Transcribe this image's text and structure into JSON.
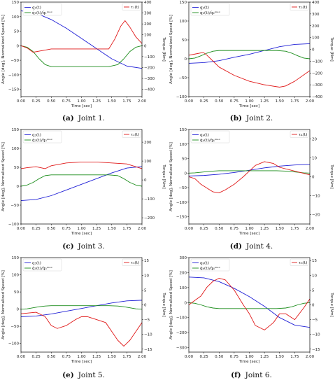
{
  "chart_data": [
    {
      "type": "line",
      "caption_letter": "(a)",
      "caption_text": "Joint 1.",
      "xlabel": "Time [sec]",
      "ylabel_left": "Angle [deg], Normalized Speed [%]",
      "ylabel_right": "Torque [Nm]",
      "xlim": [
        0,
        2
      ],
      "xticks": [
        "0.00",
        "0.25",
        "0.50",
        "0.75",
        "1.00",
        "1.25",
        "1.50",
        "1.75",
        "2.00"
      ],
      "ylim_left": [
        -175,
        150
      ],
      "yticks_left": [
        "150",
        "100",
        "50",
        "0",
        "−50",
        "−100",
        "−150"
      ],
      "ylim_right": [
        -467,
        400
      ],
      "yticks_right": [
        "400",
        "300",
        "200",
        "100",
        "0",
        "−100",
        "−200",
        "−300",
        "−400"
      ],
      "legend_left": [
        "q₁(t)",
        "q̇₁(t)/q̇₁ᵐᵃˣ"
      ],
      "legend_right": [
        "τ₁(t)"
      ],
      "series": [
        {
          "name": "q₁(t)",
          "axis": "left",
          "color": "#1f1fd6",
          "x": [
            0,
            0.25,
            0.5,
            0.75,
            1.0,
            1.25,
            1.5,
            1.75,
            2.0
          ],
          "values": [
            120,
            112,
            90,
            60,
            25,
            -10,
            -45,
            -70,
            -78
          ]
        },
        {
          "name": "q̇₁(t)/q̇₁ᵐᵃˣ",
          "axis": "left",
          "color": "#1a8c1a",
          "x": [
            0,
            0.1,
            0.2,
            0.3,
            0.4,
            0.5,
            1.0,
            1.45,
            1.6,
            1.7,
            1.8,
            1.9,
            2.0
          ],
          "values": [
            0,
            -5,
            -20,
            -45,
            -65,
            -72,
            -72,
            -72,
            -65,
            -45,
            -20,
            -5,
            0
          ]
        },
        {
          "name": "τ₁(t)",
          "axis": "right",
          "color": "#e01818",
          "x": [
            0,
            0.1,
            0.2,
            0.3,
            0.4,
            0.5,
            0.75,
            1.0,
            1.25,
            1.45,
            1.55,
            1.65,
            1.72,
            1.8,
            1.9,
            2.0
          ],
          "values": [
            0,
            -20,
            -60,
            -50,
            -40,
            -30,
            -30,
            -30,
            -30,
            -30,
            60,
            180,
            230,
            170,
            80,
            20
          ]
        }
      ]
    },
    {
      "type": "line",
      "caption_letter": "(b)",
      "caption_text": "Joint 2.",
      "xlabel": "Time [sec]",
      "ylabel_left": "Angle [deg], Normalized Speed [%]",
      "ylabel_right": "Torque [Nm]",
      "xlim": [
        0,
        2
      ],
      "xticks": [
        "0.00",
        "0.25",
        "0.50",
        "0.75",
        "1.00",
        "1.25",
        "1.50",
        "1.75",
        "2.00"
      ],
      "ylim_left": [
        -100,
        150
      ],
      "yticks_left": [
        "150",
        "100",
        "50",
        "0",
        "−50",
        "−100"
      ],
      "ylim_right": [
        -400,
        400
      ],
      "yticks_right": [
        "400",
        "300",
        "200",
        "100",
        "0",
        "−100",
        "−200",
        "−300",
        "−400"
      ],
      "legend_left": [
        "q₂(t)",
        "q̇₂(t)/q̇₂ᵐᵃˣ"
      ],
      "legend_right": [
        "τ₂(t)"
      ],
      "series": [
        {
          "name": "q₂(t)",
          "axis": "left",
          "color": "#1f1fd6",
          "x": [
            0,
            0.25,
            0.5,
            0.75,
            1.0,
            1.25,
            1.5,
            1.75,
            2.0
          ],
          "values": [
            -12,
            -10,
            -5,
            4,
            12,
            22,
            32,
            38,
            40
          ]
        },
        {
          "name": "q̇₂(t)/q̇₂ᵐᵃˣ",
          "axis": "left",
          "color": "#1a8c1a",
          "x": [
            0,
            0.1,
            0.2,
            0.3,
            0.4,
            0.5,
            1.0,
            1.45,
            1.6,
            1.7,
            1.8,
            1.9,
            2.0
          ],
          "values": [
            0,
            2,
            8,
            15,
            20,
            22,
            22,
            22,
            20,
            15,
            8,
            2,
            0
          ]
        },
        {
          "name": "τ₂(t)",
          "axis": "right",
          "color": "#e01818",
          "x": [
            0,
            0.1,
            0.2,
            0.25,
            0.3,
            0.4,
            0.5,
            0.75,
            1.0,
            1.25,
            1.5,
            1.6,
            1.75,
            2.0
          ],
          "values": [
            -50,
            -40,
            -30,
            -30,
            -50,
            -100,
            -150,
            -220,
            -270,
            -300,
            -320,
            -310,
            -270,
            -180
          ]
        }
      ]
    },
    {
      "type": "line",
      "caption_letter": "(c)",
      "caption_text": "Joint 3.",
      "xlabel": "Time [sec]",
      "ylabel_left": "Angle [deg], Normalized Speed [%]",
      "ylabel_right": "Torque [Nm]",
      "xlim": [
        0,
        2
      ],
      "xticks": [
        "0.00",
        "0.25",
        "0.50",
        "0.75",
        "1.00",
        "1.25",
        "1.50",
        "1.75",
        "2.00"
      ],
      "ylim_left": [
        -100,
        150
      ],
      "yticks_left": [
        "150",
        "100",
        "50",
        "0",
        "−50",
        "−100"
      ],
      "ylim_right": [
        -233,
        267
      ],
      "yticks_right": [
        "200",
        "100",
        "0",
        "−100",
        "−200"
      ],
      "legend_left": [
        "q₃(t)",
        "q̇₃(t)/q̇₃ᵐᵃˣ"
      ],
      "legend_right": [
        "τ₃(t)"
      ],
      "series": [
        {
          "name": "q₃(t)",
          "axis": "left",
          "color": "#1f1fd6",
          "x": [
            0,
            0.25,
            0.5,
            0.75,
            1.0,
            1.25,
            1.5,
            1.75,
            2.0
          ],
          "values": [
            -38,
            -35,
            -25,
            -10,
            5,
            20,
            35,
            48,
            52
          ]
        },
        {
          "name": "q̇₃(t)/q̇₃ᵐᵃˣ",
          "axis": "left",
          "color": "#1a8c1a",
          "x": [
            0,
            0.1,
            0.2,
            0.3,
            0.4,
            0.5,
            1.0,
            1.45,
            1.6,
            1.7,
            1.8,
            1.9,
            2.0
          ],
          "values": [
            0,
            3,
            10,
            20,
            28,
            30,
            30,
            30,
            28,
            20,
            10,
            3,
            0
          ]
        },
        {
          "name": "τ₃(t)",
          "axis": "right",
          "color": "#e01818",
          "x": [
            0,
            0.1,
            0.25,
            0.4,
            0.5,
            0.75,
            1.0,
            1.25,
            1.5,
            1.75,
            2.0
          ],
          "values": [
            60,
            65,
            70,
            60,
            75,
            90,
            95,
            95,
            90,
            85,
            60
          ]
        }
      ]
    },
    {
      "type": "line",
      "caption_letter": "(d)",
      "caption_text": "Joint 4.",
      "xlabel": "Time [sec]",
      "ylabel_left": "Angle [deg], Normalized Speed [%]",
      "ylabel_right": "Torque [Nm]",
      "xlim": [
        0,
        2
      ],
      "xticks": [
        "0.00",
        "0.25",
        "0.50",
        "0.75",
        "1.00",
        "1.25",
        "1.50",
        "1.75",
        "2.00"
      ],
      "ylim_left": [
        -175,
        150
      ],
      "yticks_left": [
        "150",
        "100",
        "50",
        "0",
        "−50",
        "−100",
        "−150"
      ],
      "ylim_right": [
        -25,
        25
      ],
      "yticks_right": [
        "20",
        "10",
        "0",
        "−10",
        "−20"
      ],
      "legend_left": [
        "q₄(t)",
        "q̇₄(t)/q̇₄ᵐᵃˣ"
      ],
      "legend_right": [
        "τ₄(t)"
      ],
      "series": [
        {
          "name": "q₄(t)",
          "axis": "left",
          "color": "#1f1fd6",
          "x": [
            0,
            0.25,
            0.5,
            0.75,
            1.0,
            1.25,
            1.5,
            1.75,
            2.0
          ],
          "values": [
            -10,
            -8,
            -4,
            2,
            10,
            18,
            24,
            28,
            30
          ]
        },
        {
          "name": "q̇₄(t)/q̇₄ᵐᵃˣ",
          "axis": "left",
          "color": "#1a8c1a",
          "x": [
            0,
            0.1,
            0.2,
            0.3,
            0.4,
            0.5,
            1.0,
            1.45,
            1.6,
            1.7,
            1.8,
            1.9,
            2.0
          ],
          "values": [
            0,
            1,
            3,
            5,
            7,
            8,
            8,
            8,
            7,
            5,
            3,
            1,
            0
          ]
        },
        {
          "name": "τ₄(t)",
          "axis": "right",
          "color": "#e01818",
          "x": [
            0,
            0.1,
            0.2,
            0.3,
            0.4,
            0.5,
            0.6,
            0.75,
            0.9,
            1.0,
            1.1,
            1.25,
            1.4,
            1.5,
            1.75,
            2.0
          ],
          "values": [
            0,
            -1,
            -4,
            -6,
            -8,
            -8.5,
            -7,
            -4,
            0,
            3,
            6,
            8,
            7,
            5,
            3,
            1
          ]
        }
      ]
    },
    {
      "type": "line",
      "caption_letter": "(e)",
      "caption_text": "Joint 5.",
      "xlabel": "Time [sec]",
      "ylabel_left": "Angle [deg], Normalized Speed [%]",
      "ylabel_right": "Torque [Nm]",
      "xlim": [
        0,
        2
      ],
      "xticks": [
        "0.00",
        "0.25",
        "0.50",
        "0.75",
        "1.00",
        "1.25",
        "1.50",
        "1.75",
        "2.00"
      ],
      "ylim_left": [
        -125,
        150
      ],
      "yticks_left": [
        "150",
        "100",
        "50",
        "0",
        "−50",
        "−100"
      ],
      "ylim_right": [
        -16,
        16
      ],
      "yticks_right": [
        "15",
        "10",
        "5",
        "0",
        "−5",
        "−10",
        "−15"
      ],
      "legend_left": [
        "q₅(t)",
        "q̇₅(t)/q̇₅ᵐᵃˣ"
      ],
      "legend_right": [
        "τ₅(t)"
      ],
      "series": [
        {
          "name": "q₅(t)",
          "axis": "left",
          "color": "#1f1fd6",
          "x": [
            0,
            0.25,
            0.5,
            0.75,
            1.0,
            1.25,
            1.5,
            1.75,
            2.0
          ],
          "values": [
            -22,
            -20,
            -14,
            -6,
            2,
            10,
            18,
            24,
            26
          ]
        },
        {
          "name": "q̇₅(t)/q̇₅ᵐᵃˣ",
          "axis": "left",
          "color": "#1a8c1a",
          "x": [
            0,
            0.1,
            0.2,
            0.3,
            0.4,
            0.5,
            1.0,
            1.45,
            1.6,
            1.7,
            1.8,
            1.9,
            2.0
          ],
          "values": [
            0,
            1,
            4,
            7,
            9,
            10,
            10,
            10,
            9,
            7,
            4,
            1,
            0
          ]
        },
        {
          "name": "τ₅(t)",
          "axis": "right",
          "color": "#e01818",
          "x": [
            0,
            0.25,
            0.4,
            0.5,
            0.6,
            0.75,
            0.9,
            1.0,
            1.1,
            1.25,
            1.4,
            1.5,
            1.6,
            1.7,
            1.8,
            1.9,
            2.0
          ],
          "values": [
            -3,
            -2.5,
            -4,
            -7,
            -8,
            -7,
            -5,
            -4,
            -4,
            -5,
            -6,
            -9,
            -12,
            -14,
            -12,
            -9,
            -6
          ]
        }
      ]
    },
    {
      "type": "line",
      "caption_letter": "(f)",
      "caption_text": "Joint 6.",
      "xlabel": "Time [sec]",
      "ylabel_left": "Angle [deg], Normalized Speed [%]",
      "ylabel_right": "Torque [Nm]",
      "xlim": [
        0,
        2
      ],
      "xticks": [
        "0.00",
        "0.25",
        "0.50",
        "0.75",
        "1.00",
        "1.25",
        "1.50",
        "1.75",
        "2.00"
      ],
      "ylim_left": [
        -330,
        300
      ],
      "yticks_left": [
        "300",
        "200",
        "100",
        "0",
        "−100",
        "−200",
        "−300"
      ],
      "ylim_right": [
        -16,
        16
      ],
      "yticks_right": [
        "15",
        "10",
        "5",
        "0",
        "−5",
        "−10",
        "−15"
      ],
      "legend_left": [
        "q₆(t)",
        "q̇₆(t)/q̇₆ᵐᵃˣ"
      ],
      "legend_right": [
        "τ₆(t)"
      ],
      "series": [
        {
          "name": "q₆(t)",
          "axis": "left",
          "color": "#1f1fd6",
          "x": [
            0,
            0.25,
            0.5,
            0.75,
            1.0,
            1.25,
            1.5,
            1.75,
            2.0
          ],
          "values": [
            170,
            165,
            140,
            95,
            40,
            -25,
            -100,
            -150,
            -165
          ]
        },
        {
          "name": "q̇₆(t)/q̇₆ᵐᵃˣ",
          "axis": "left",
          "color": "#1a8c1a",
          "x": [
            0,
            0.1,
            0.2,
            0.3,
            0.4,
            0.5,
            1.0,
            1.45,
            1.6,
            1.7,
            1.8,
            1.9,
            2.0
          ],
          "values": [
            0,
            -5,
            -15,
            -28,
            -36,
            -40,
            -40,
            -40,
            -36,
            -28,
            -15,
            -5,
            0
          ]
        },
        {
          "name": "τ₆(t)",
          "axis": "right",
          "color": "#e01818",
          "x": [
            0,
            0.1,
            0.2,
            0.3,
            0.4,
            0.5,
            0.6,
            0.75,
            0.9,
            1.0,
            1.1,
            1.25,
            1.4,
            1.5,
            1.6,
            1.75,
            1.9,
            2.0
          ],
          "values": [
            0,
            1.5,
            3,
            6,
            8,
            9,
            8.5,
            5,
            0,
            -3,
            -7,
            -8.5,
            -6,
            -3,
            -3,
            -5,
            -1,
            2
          ]
        }
      ]
    }
  ]
}
